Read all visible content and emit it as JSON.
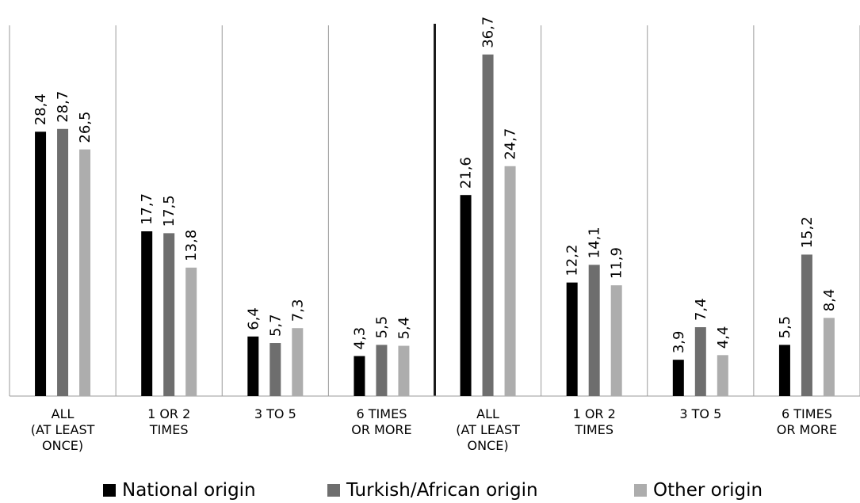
{
  "chart_data": {
    "type": "bar",
    "categories": [
      [
        "ALL",
        "(AT LEAST",
        "ONCE)"
      ],
      [
        "1 OR 2",
        "TIMES"
      ],
      [
        "3 TO 5"
      ],
      [
        "6 TIMES",
        "OR MORE"
      ],
      [
        "ALL",
        "(AT LEAST",
        "ONCE)"
      ],
      [
        "1 OR 2",
        "TIMES"
      ],
      [
        "3 TO 5"
      ],
      [
        "6 TIMES",
        "OR MORE"
      ]
    ],
    "series": [
      {
        "name": "National origin",
        "color": "#000000",
        "values": [
          28.4,
          17.7,
          6.4,
          4.3,
          21.6,
          12.2,
          3.9,
          5.5
        ],
        "labels": [
          "28,4",
          "17,7",
          "6,4",
          "4,3",
          "21,6",
          "12,2",
          "3,9",
          "5,5"
        ]
      },
      {
        "name": "Turkish/African origin",
        "color": "#6e6e6e",
        "values": [
          28.7,
          17.5,
          5.7,
          5.5,
          36.7,
          14.1,
          7.4,
          15.2
        ],
        "labels": [
          "28,7",
          "17,5",
          "5,7",
          "5,5",
          "36,7",
          "14,1",
          "7,4",
          "15,2"
        ]
      },
      {
        "name": "Other origin",
        "color": "#adadad",
        "values": [
          26.5,
          13.8,
          7.3,
          5.4,
          24.7,
          11.9,
          4.4,
          8.4
        ],
        "labels": [
          "26,5",
          "13,8",
          "7,3",
          "5,4",
          "24,7",
          "11,9",
          "4,4",
          "8,4"
        ]
      }
    ],
    "ylim": [
      0,
      40
    ],
    "legend_position": "bottom",
    "grid": false
  },
  "legend": [
    {
      "label": "National origin",
      "color": "#000000"
    },
    {
      "label": "Turkish/African origin",
      "color": "#6e6e6e"
    },
    {
      "label": "Other origin",
      "color": "#adadad"
    }
  ]
}
